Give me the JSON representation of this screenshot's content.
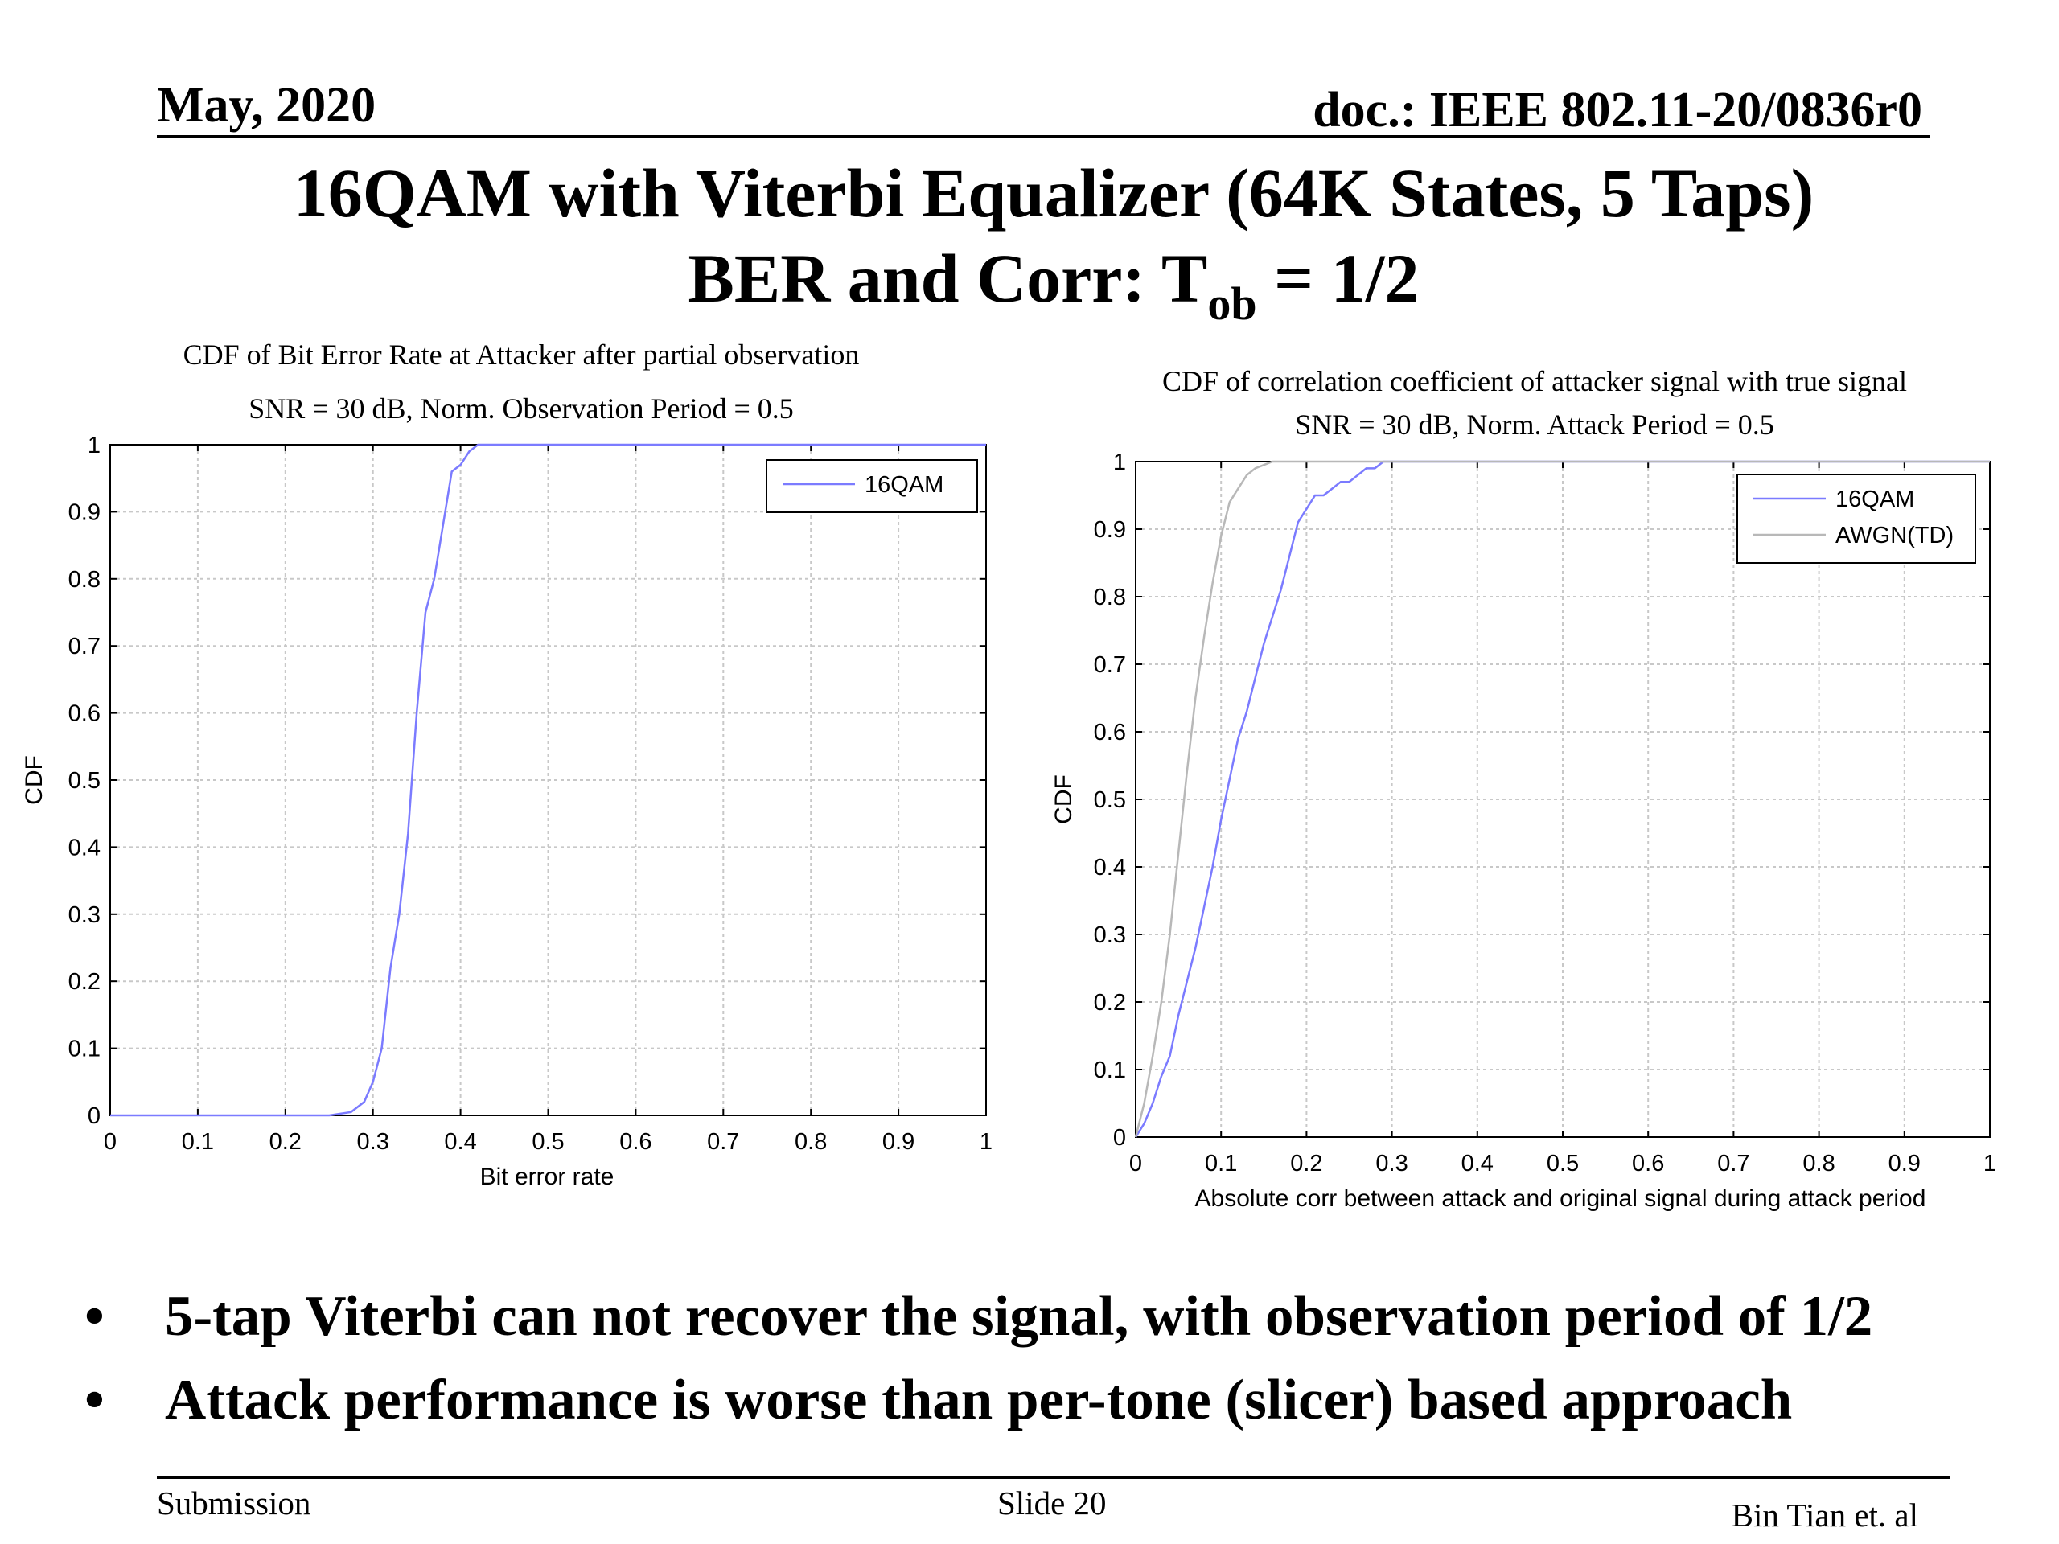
{
  "header": {
    "date": "May, 2020",
    "doc": "doc.: IEEE 802.11-20/0836r0"
  },
  "title": {
    "line1": "16QAM with Viterbi Equalizer (64K States, 5 Taps)",
    "line2_main": "BER and Corr: T",
    "line2_sub": "ob",
    "line2_tail": " = 1/2"
  },
  "chart_data": [
    {
      "type": "line",
      "title": "CDF of Bit Error Rate at Attacker after partial observation",
      "subtitle": "SNR = 30 dB, Norm. Observation Period = 0.5",
      "xlabel": "Bit error rate",
      "ylabel": "CDF",
      "xlim": [
        0,
        1
      ],
      "ylim": [
        0,
        1
      ],
      "xticks": [
        "0",
        "0.1",
        "0.2",
        "0.3",
        "0.4",
        "0.5",
        "0.6",
        "0.7",
        "0.8",
        "0.9",
        "1"
      ],
      "yticks": [
        "0",
        "0.1",
        "0.2",
        "0.3",
        "0.4",
        "0.5",
        "0.6",
        "0.7",
        "0.8",
        "0.9",
        "1"
      ],
      "grid": true,
      "legend_position": "top-right",
      "series": [
        {
          "name": "16QAM",
          "color": "#7b7bff",
          "x": [
            0,
            0.25,
            0.275,
            0.29,
            0.3,
            0.31,
            0.32,
            0.33,
            0.34,
            0.35,
            0.36,
            0.37,
            0.38,
            0.39,
            0.4,
            0.41,
            0.42,
            0.43,
            1.0
          ],
          "y": [
            0,
            0,
            0.005,
            0.02,
            0.05,
            0.1,
            0.22,
            0.3,
            0.42,
            0.6,
            0.75,
            0.8,
            0.88,
            0.96,
            0.97,
            0.99,
            1.0,
            1.0,
            1.0
          ]
        }
      ]
    },
    {
      "type": "line",
      "title": "CDF of correlation coefficient of attacker signal with true signal",
      "subtitle": "SNR = 30 dB, Norm. Attack Period = 0.5",
      "xlabel": "Absolute corr between attack and original signal during attack period",
      "ylabel": "CDF",
      "xlim": [
        0,
        1
      ],
      "ylim": [
        0,
        1
      ],
      "xticks": [
        "0",
        "0.1",
        "0.2",
        "0.3",
        "0.4",
        "0.5",
        "0.6",
        "0.7",
        "0.8",
        "0.9",
        "1"
      ],
      "yticks": [
        "0",
        "0.1",
        "0.2",
        "0.3",
        "0.4",
        "0.5",
        "0.6",
        "0.7",
        "0.8",
        "0.9",
        "1"
      ],
      "grid": true,
      "legend_position": "top-right",
      "series": [
        {
          "name": "16QAM",
          "color": "#7b7bff",
          "x": [
            0,
            0.01,
            0.02,
            0.03,
            0.04,
            0.05,
            0.06,
            0.07,
            0.08,
            0.09,
            0.1,
            0.11,
            0.12,
            0.13,
            0.14,
            0.15,
            0.16,
            0.17,
            0.18,
            0.19,
            0.2,
            0.21,
            0.22,
            0.23,
            0.24,
            0.25,
            0.26,
            0.27,
            0.28,
            0.29,
            0.3,
            1.0
          ],
          "y": [
            0,
            0.02,
            0.05,
            0.09,
            0.12,
            0.18,
            0.23,
            0.28,
            0.34,
            0.4,
            0.47,
            0.53,
            0.59,
            0.63,
            0.68,
            0.73,
            0.77,
            0.81,
            0.86,
            0.91,
            0.93,
            0.95,
            0.95,
            0.96,
            0.97,
            0.97,
            0.98,
            0.99,
            0.99,
            1.0,
            1.0,
            1.0
          ]
        },
        {
          "name": "AWGN(TD)",
          "color": "#b8b8b8",
          "x": [
            0,
            0.01,
            0.02,
            0.03,
            0.04,
            0.05,
            0.06,
            0.07,
            0.08,
            0.09,
            0.1,
            0.11,
            0.12,
            0.13,
            0.14,
            0.15,
            0.16,
            0.17,
            0.18,
            1.0
          ],
          "y": [
            0,
            0.05,
            0.12,
            0.2,
            0.3,
            0.42,
            0.54,
            0.65,
            0.74,
            0.82,
            0.89,
            0.94,
            0.96,
            0.98,
            0.99,
            0.995,
            1.0,
            1.0,
            1.0,
            1.0
          ]
        }
      ]
    }
  ],
  "bullets": [
    {
      "marker": "•",
      "text": "5-tap Viterbi can not recover the signal, with observation period of 1/2"
    },
    {
      "marker": "•",
      "text": "Attack performance is worse than per-tone (slicer) based approach"
    }
  ],
  "footer": {
    "left": "Submission",
    "center": "Slide 20",
    "right": "Bin Tian et. al"
  }
}
